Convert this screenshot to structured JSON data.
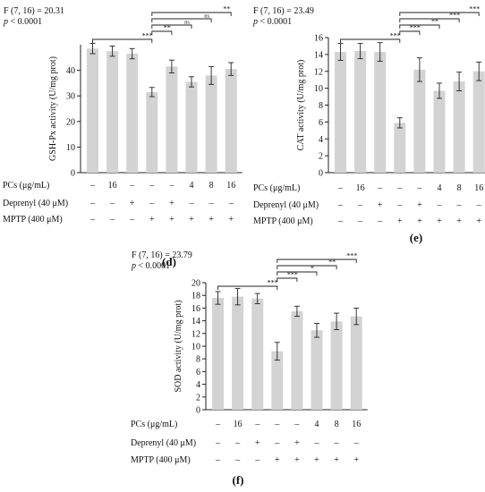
{
  "chart_data": [
    {
      "type": "bar",
      "panel_label": "(d)",
      "stat_line": "F (7, 16) = 20.31",
      "p_prefix": "p",
      "p_value": " < 0.0001",
      "ylabel": "GSH-Px activity (U/mg prot)",
      "ylim": [
        0,
        50
      ],
      "yticks": [
        0,
        10,
        20,
        30,
        40
      ],
      "values": [
        48.5,
        47.5,
        46.5,
        31.5,
        41.5,
        35.5,
        38.0,
        40.5
      ],
      "errors": [
        2.0,
        2.0,
        2.0,
        1.8,
        2.5,
        2.0,
        3.5,
        2.5
      ],
      "significance": [
        {
          "from": 0,
          "to": 3,
          "label": "***"
        },
        {
          "from": 3,
          "to": 4,
          "label": "**"
        },
        {
          "from": 3,
          "to": 5,
          "label": "ns"
        },
        {
          "from": 3,
          "to": 6,
          "label": "ns"
        },
        {
          "from": 3,
          "to": 7,
          "label": "**"
        }
      ],
      "row_labels": [
        "PCs (μg/mL)",
        "Deprenyl (40 μM)",
        "MPTP (400 μM)"
      ],
      "rows": [
        [
          "–",
          "16",
          "–",
          "–",
          "–",
          "4",
          "8",
          "16"
        ],
        [
          "–",
          "–",
          "+",
          "–",
          "+",
          "–",
          "–",
          "–"
        ],
        [
          "–",
          "–",
          "–",
          "+",
          "+",
          "+",
          "+",
          "+"
        ]
      ]
    },
    {
      "type": "bar",
      "panel_label": "(e)",
      "stat_line": "F (7, 16) = 23.49",
      "p_prefix": "p",
      "p_value": " < 0.0001",
      "ylabel": "CAT activity (U/mg prot)",
      "ylim": [
        0,
        16
      ],
      "yticks": [
        0,
        2,
        4,
        6,
        8,
        10,
        12,
        14,
        16
      ],
      "values": [
        14.3,
        14.4,
        14.3,
        5.9,
        12.2,
        9.7,
        10.8,
        12.0
      ],
      "errors": [
        1.0,
        0.9,
        1.1,
        0.6,
        1.4,
        0.9,
        1.1,
        1.1
      ],
      "significance": [
        {
          "from": 0,
          "to": 3,
          "label": "***"
        },
        {
          "from": 3,
          "to": 4,
          "label": "***"
        },
        {
          "from": 3,
          "to": 5,
          "label": "**"
        },
        {
          "from": 3,
          "to": 6,
          "label": "***"
        },
        {
          "from": 3,
          "to": 7,
          "label": "***"
        }
      ],
      "row_labels": [
        "PCs (μg/mL)",
        "Deprenyl (40 μM)",
        "MPTP (400 μM)"
      ],
      "rows": [
        [
          "–",
          "16",
          "–",
          "–",
          "–",
          "4",
          "8",
          "16"
        ],
        [
          "–",
          "–",
          "+",
          "–",
          "+",
          "–",
          "–",
          "–"
        ],
        [
          "–",
          "–",
          "–",
          "+",
          "+",
          "+",
          "+",
          "+"
        ]
      ]
    },
    {
      "type": "bar",
      "panel_label": "(f)",
      "stat_line": "F (7, 16) = 23.79",
      "p_prefix": "p",
      "p_value": " < 0.0001",
      "ylabel": "SOD activity (U/mg prot)",
      "ylim": [
        0,
        20
      ],
      "yticks": [
        0,
        2,
        4,
        6,
        8,
        10,
        12,
        14,
        16,
        18,
        20
      ],
      "values": [
        17.6,
        17.8,
        17.5,
        9.2,
        15.5,
        12.5,
        13.9,
        14.7
      ],
      "errors": [
        1.0,
        1.3,
        0.8,
        1.4,
        0.8,
        1.1,
        1.3,
        1.3
      ],
      "significance": [
        {
          "from": 0,
          "to": 3,
          "label": "***"
        },
        {
          "from": 3,
          "to": 4,
          "label": "***"
        },
        {
          "from": 3,
          "to": 5,
          "label": "*"
        },
        {
          "from": 3,
          "to": 6,
          "label": "**"
        },
        {
          "from": 3,
          "to": 7,
          "label": "***"
        }
      ],
      "row_labels": [
        "PCs (μg/mL)",
        "Deprenyl (40 μM)",
        "MPTP (400 μM)"
      ],
      "rows": [
        [
          "–",
          "16",
          "–",
          "–",
          "–",
          "4",
          "8",
          "16"
        ],
        [
          "–",
          "–",
          "+",
          "–",
          "+",
          "–",
          "–",
          "–"
        ],
        [
          "–",
          "–",
          "–",
          "+",
          "+",
          "+",
          "+",
          "+"
        ]
      ]
    }
  ],
  "colors": {
    "bar": "#d3d3d3",
    "axis": "#222222",
    "text": "#111111"
  }
}
